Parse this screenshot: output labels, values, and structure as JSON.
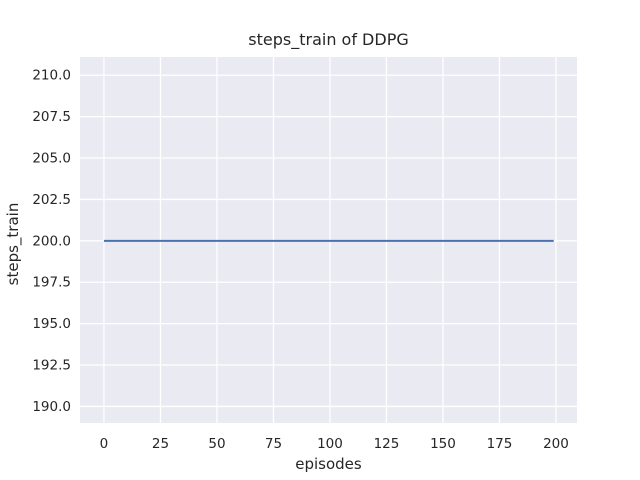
{
  "chart_data": {
    "type": "line",
    "title": "steps_train of DDPG",
    "xlabel": "episodes",
    "ylabel": "steps_train",
    "grid": true,
    "legend": "none",
    "xlim": [
      -10.6,
      209.3
    ],
    "ylim": [
      189.0,
      211.1
    ],
    "xticks": [
      0,
      25,
      50,
      75,
      100,
      125,
      150,
      175,
      200
    ],
    "xtick_labels": [
      "0",
      "25",
      "50",
      "75",
      "100",
      "125",
      "150",
      "175",
      "200"
    ],
    "yticks": [
      190.0,
      192.5,
      195.0,
      197.5,
      200.0,
      202.5,
      205.0,
      207.5,
      210.0
    ],
    "ytick_labels": [
      "190.0",
      "192.5",
      "195.0",
      "197.5",
      "200.0",
      "202.5",
      "205.0",
      "207.5",
      "210.0"
    ],
    "series": [
      {
        "name": "steps_train",
        "constant_value": 200,
        "x": [
          0,
          199
        ],
        "y": [
          200,
          200
        ],
        "color": "#4c72b0",
        "line_width": 2
      }
    ],
    "style": {
      "figure_bg": "#ffffff",
      "axes_bg": "#eaeaf2",
      "grid_color": "#ffffff",
      "text_color": "#262626"
    }
  }
}
